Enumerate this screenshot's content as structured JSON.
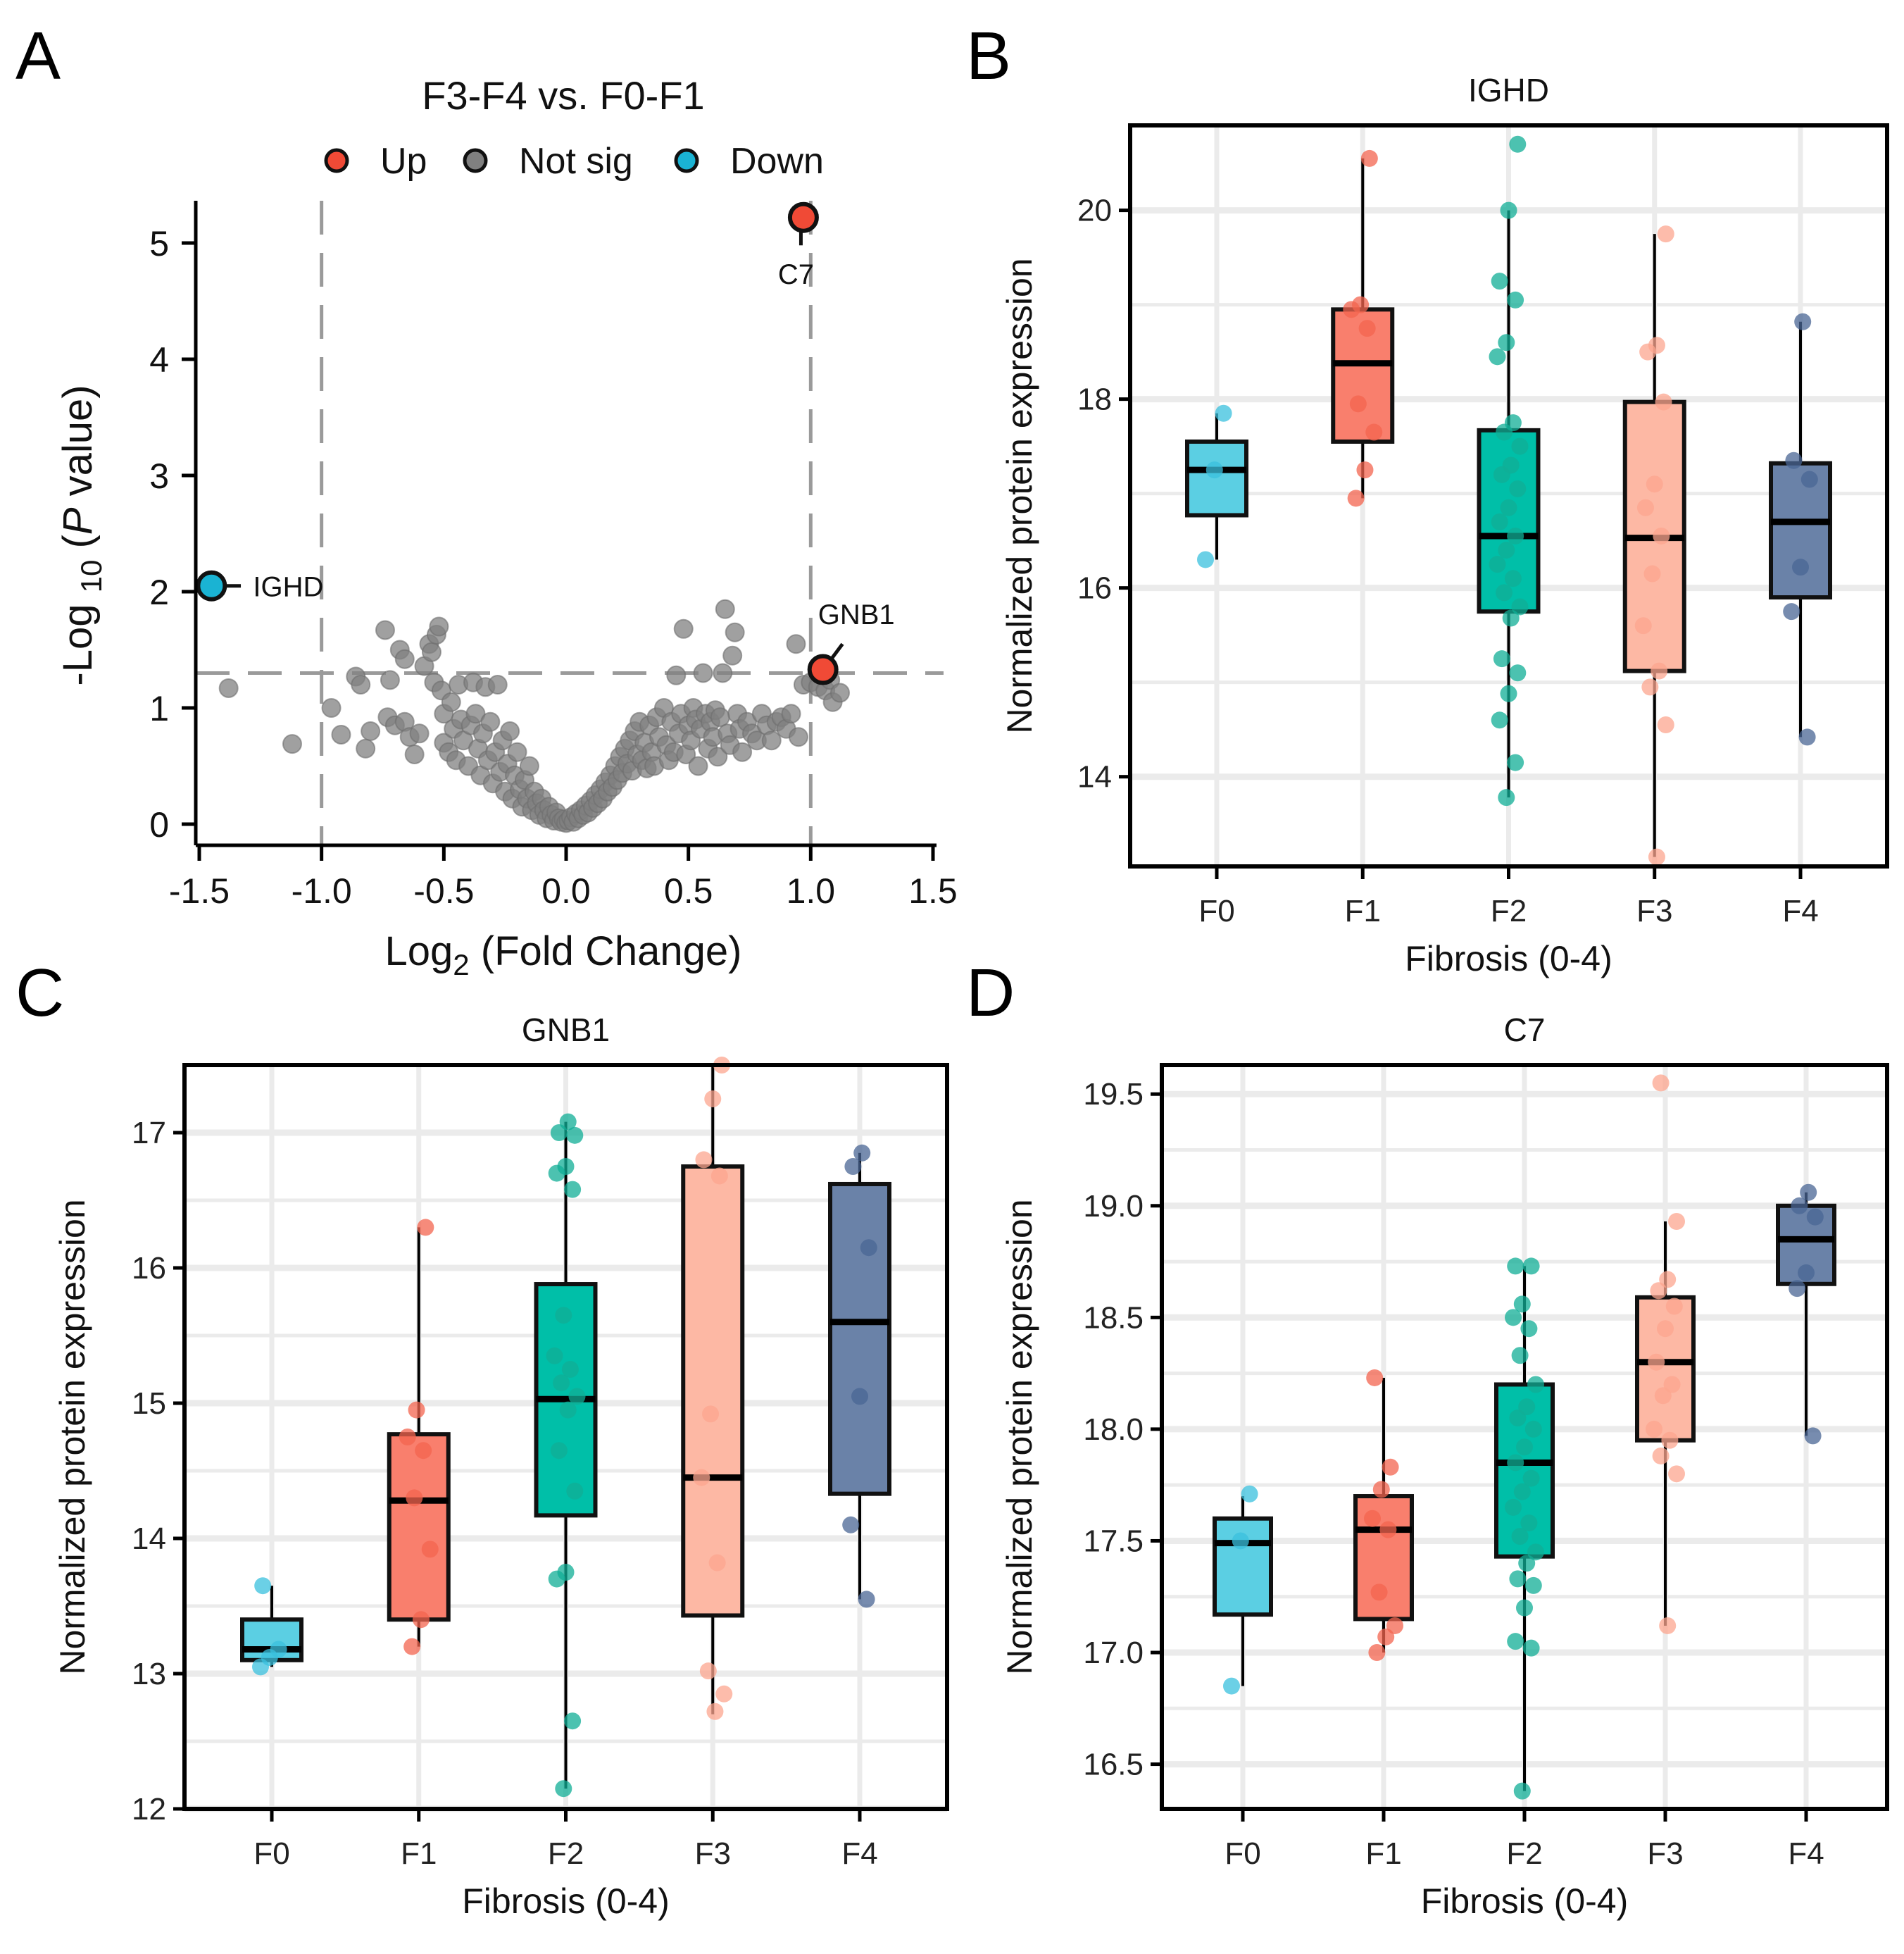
{
  "figure": {
    "panel_letters": [
      "A",
      "B",
      "C",
      "D"
    ]
  },
  "chart_data": [
    {
      "type": "scatter",
      "panel": "A",
      "title": "F3-F4 vs. F0-F1",
      "xlabel": "Log2 (Fold Change)",
      "xlabel_parts": {
        "base": "Log",
        "sub": "2",
        "rest": " (Fold Change)"
      },
      "ylabel": "-Log10 (P value)",
      "ylabel_parts": {
        "pre": "-Log ",
        "sub": "10",
        "mid": " (",
        "italic": "P",
        "post": " value)"
      },
      "xlim": [
        -1.5,
        1.5
      ],
      "ylim": [
        0,
        5.3
      ],
      "x_ticks": [
        -1.5,
        -1.0,
        -0.5,
        0.0,
        0.5,
        1.0,
        1.5
      ],
      "x_tick_labels": [
        "-1.5",
        "-1.0",
        "-0.5",
        "0.0",
        "0.5",
        "1.0",
        "1.5"
      ],
      "y_ticks": [
        0,
        1,
        2,
        3,
        4,
        5
      ],
      "y_tick_labels": [
        "0",
        "1",
        "2",
        "3",
        "4",
        "5"
      ],
      "thresholds": {
        "fc_lines": [
          -1.0,
          1.0
        ],
        "p_line": 1.3
      },
      "legend": {
        "position": "top",
        "entries": [
          {
            "label": "Up",
            "color": "#f04a36"
          },
          {
            "label": "Not sig",
            "color": "#808080"
          },
          {
            "label": "Down",
            "color": "#1ab3d3"
          }
        ]
      },
      "highlighted": [
        {
          "gene": "C7",
          "x": 0.97,
          "y": 5.22,
          "status": "Up",
          "color": "#f04a36"
        },
        {
          "gene": "GNB1",
          "x": 1.05,
          "y": 1.33,
          "status": "Up",
          "color": "#f04a36"
        },
        {
          "gene": "IGHD",
          "x": -1.45,
          "y": 2.05,
          "status": "Down",
          "color": "#1ab3d3"
        }
      ],
      "not_sig_color": "#808080",
      "not_sig_points": [
        [
          -1.38,
          1.17
        ],
        [
          -1.12,
          0.69
        ],
        [
          -0.96,
          1.0
        ],
        [
          -0.92,
          0.77
        ],
        [
          -0.86,
          1.27
        ],
        [
          -0.84,
          1.2
        ],
        [
          -0.8,
          0.8
        ],
        [
          -0.82,
          0.65
        ],
        [
          -0.74,
          1.67
        ],
        [
          -0.73,
          0.92
        ],
        [
          -0.72,
          1.24
        ],
        [
          -0.7,
          0.85
        ],
        [
          -0.68,
          1.5
        ],
        [
          -0.66,
          1.42
        ],
        [
          -0.66,
          0.88
        ],
        [
          -0.64,
          0.75
        ],
        [
          -0.62,
          0.6
        ],
        [
          -0.6,
          0.78
        ],
        [
          -0.58,
          1.36
        ],
        [
          -0.56,
          1.55
        ],
        [
          -0.55,
          1.48
        ],
        [
          -0.54,
          1.22
        ],
        [
          -0.53,
          1.63
        ],
        [
          -0.52,
          1.7
        ],
        [
          -0.51,
          1.15
        ],
        [
          -0.5,
          0.95
        ],
        [
          -0.5,
          0.7
        ],
        [
          -0.48,
          0.62
        ],
        [
          -0.47,
          1.05
        ],
        [
          -0.46,
          0.82
        ],
        [
          -0.45,
          0.55
        ],
        [
          -0.44,
          1.2
        ],
        [
          -0.43,
          0.9
        ],
        [
          -0.42,
          0.72
        ],
        [
          -0.4,
          0.5
        ],
        [
          -0.39,
          0.85
        ],
        [
          -0.38,
          1.22
        ],
        [
          -0.37,
          0.95
        ],
        [
          -0.36,
          0.65
        ],
        [
          -0.35,
          0.42
        ],
        [
          -0.34,
          0.78
        ],
        [
          -0.33,
          1.18
        ],
        [
          -0.32,
          0.55
        ],
        [
          -0.31,
          0.88
        ],
        [
          -0.3,
          0.35
        ],
        [
          -0.29,
          0.62
        ],
        [
          -0.28,
          1.2
        ],
        [
          -0.27,
          0.45
        ],
        [
          -0.26,
          0.72
        ],
        [
          -0.25,
          0.28
        ],
        [
          -0.24,
          0.52
        ],
        [
          -0.23,
          0.8
        ],
        [
          -0.22,
          0.22
        ],
        [
          -0.21,
          0.42
        ],
        [
          -0.2,
          0.62
        ],
        [
          -0.19,
          0.3
        ],
        [
          -0.18,
          0.15
        ],
        [
          -0.17,
          0.38
        ],
        [
          -0.16,
          0.22
        ],
        [
          -0.15,
          0.5
        ],
        [
          -0.14,
          0.12
        ],
        [
          -0.13,
          0.28
        ],
        [
          -0.12,
          0.18
        ],
        [
          -0.11,
          0.08
        ],
        [
          -0.1,
          0.22
        ],
        [
          -0.09,
          0.12
        ],
        [
          -0.08,
          0.05
        ],
        [
          -0.07,
          0.15
        ],
        [
          -0.06,
          0.08
        ],
        [
          -0.05,
          0.03
        ],
        [
          -0.04,
          0.1
        ],
        [
          -0.03,
          0.05
        ],
        [
          -0.02,
          0.02
        ],
        [
          -0.01,
          0.04
        ],
        [
          0.0,
          0.01
        ],
        [
          0.01,
          0.03
        ],
        [
          0.02,
          0.06
        ],
        [
          0.03,
          0.02
        ],
        [
          0.04,
          0.09
        ],
        [
          0.05,
          0.05
        ],
        [
          0.06,
          0.12
        ],
        [
          0.07,
          0.08
        ],
        [
          0.08,
          0.16
        ],
        [
          0.09,
          0.1
        ],
        [
          0.1,
          0.2
        ],
        [
          0.11,
          0.14
        ],
        [
          0.12,
          0.25
        ],
        [
          0.13,
          0.18
        ],
        [
          0.14,
          0.3
        ],
        [
          0.15,
          0.22
        ],
        [
          0.16,
          0.36
        ],
        [
          0.17,
          0.28
        ],
        [
          0.18,
          0.42
        ],
        [
          0.19,
          0.32
        ],
        [
          0.2,
          0.5
        ],
        [
          0.21,
          0.38
        ],
        [
          0.22,
          0.58
        ],
        [
          0.23,
          0.44
        ],
        [
          0.24,
          0.65
        ],
        [
          0.25,
          0.52
        ],
        [
          0.26,
          0.72
        ],
        [
          0.27,
          0.46
        ],
        [
          0.28,
          0.8
        ],
        [
          0.29,
          0.6
        ],
        [
          0.3,
          0.88
        ],
        [
          0.31,
          0.55
        ],
        [
          0.32,
          0.7
        ],
        [
          0.33,
          0.48
        ],
        [
          0.34,
          0.85
        ],
        [
          0.35,
          0.62
        ],
        [
          0.36,
          0.5
        ],
        [
          0.37,
          0.92
        ],
        [
          0.38,
          0.75
        ],
        [
          0.4,
          1.0
        ],
        [
          0.41,
          0.68
        ],
        [
          0.42,
          0.55
        ],
        [
          0.43,
          0.88
        ],
        [
          0.44,
          0.62
        ],
        [
          0.45,
          1.28
        ],
        [
          0.46,
          0.78
        ],
        [
          0.47,
          0.95
        ],
        [
          0.48,
          1.68
        ],
        [
          0.49,
          0.6
        ],
        [
          0.5,
          0.85
        ],
        [
          0.51,
          0.72
        ],
        [
          0.52,
          1.0
        ],
        [
          0.53,
          0.9
        ],
        [
          0.54,
          0.5
        ],
        [
          0.55,
          0.82
        ],
        [
          0.56,
          1.3
        ],
        [
          0.57,
          0.95
        ],
        [
          0.58,
          0.65
        ],
        [
          0.59,
          0.88
        ],
        [
          0.6,
          0.75
        ],
        [
          0.61,
          0.98
        ],
        [
          0.62,
          0.58
        ],
        [
          0.63,
          0.92
        ],
        [
          0.64,
          1.3
        ],
        [
          0.65,
          1.85
        ],
        [
          0.66,
          0.78
        ],
        [
          0.67,
          0.68
        ],
        [
          0.68,
          1.45
        ],
        [
          0.69,
          1.65
        ],
        [
          0.7,
          0.95
        ],
        [
          0.71,
          0.82
        ],
        [
          0.72,
          0.62
        ],
        [
          0.74,
          0.88
        ],
        [
          0.76,
          0.78
        ],
        [
          0.78,
          0.72
        ],
        [
          0.8,
          0.95
        ],
        [
          0.82,
          0.85
        ],
        [
          0.84,
          0.72
        ],
        [
          0.86,
          0.88
        ],
        [
          0.88,
          0.92
        ],
        [
          0.9,
          0.82
        ],
        [
          0.92,
          0.95
        ],
        [
          0.94,
          1.55
        ],
        [
          0.95,
          0.75
        ],
        [
          0.97,
          1.2
        ],
        [
          1.0,
          1.22
        ],
        [
          1.03,
          1.18
        ],
        [
          1.06,
          1.15
        ],
        [
          1.08,
          1.24
        ],
        [
          1.09,
          1.05
        ],
        [
          1.12,
          1.13
        ]
      ]
    },
    {
      "type": "box",
      "panel": "B",
      "title": "IGHD",
      "xlabel": "Fibrosis (0-4)",
      "ylabel": "Normalized protein expression",
      "ylim": [
        13.05,
        20.9
      ],
      "y_ticks": [
        14,
        16,
        18,
        20
      ],
      "y_tick_labels": [
        "14",
        "16",
        "18",
        "20"
      ],
      "grid": true,
      "categories": [
        "F0",
        "F1",
        "F2",
        "F3",
        "F4"
      ],
      "colors": [
        "#5bcfe3",
        "#f97f6d",
        "#00bfa8",
        "#fdb8a4",
        "#6a82a8"
      ],
      "point_colors": [
        "#39c0dd",
        "#f3644f",
        "#10ad96",
        "#fca58f",
        "#4a6594"
      ],
      "boxes": [
        {
          "q1": 16.77,
          "median": 17.25,
          "q3": 17.55,
          "whisker_low": 16.3,
          "whisker_high": 17.85
        },
        {
          "q1": 17.55,
          "median": 18.38,
          "q3": 18.95,
          "whisker_low": 16.95,
          "whisker_high": 20.55
        },
        {
          "q1": 15.75,
          "median": 16.55,
          "q3": 17.67,
          "whisker_low": 13.78,
          "whisker_high": 20.0
        },
        {
          "q1": 15.12,
          "median": 16.53,
          "q3": 17.97,
          "whisker_low": 13.15,
          "whisker_high": 19.75
        },
        {
          "q1": 15.9,
          "median": 16.7,
          "q3": 17.32,
          "whisker_low": 14.42,
          "whisker_high": 18.82
        }
      ],
      "points": [
        [
          16.3,
          17.25,
          17.85
        ],
        [
          16.95,
          17.25,
          17.65,
          17.95,
          18.75,
          18.95,
          19.0,
          20.55
        ],
        [
          13.78,
          14.15,
          14.6,
          14.88,
          15.1,
          15.25,
          15.68,
          15.8,
          15.95,
          16.1,
          16.25,
          16.4,
          16.55,
          16.7,
          16.85,
          17.05,
          17.2,
          17.3,
          17.5,
          17.65,
          17.75,
          18.45,
          18.6,
          19.05,
          19.25,
          20.0,
          20.7
        ],
        [
          13.15,
          14.55,
          14.95,
          15.12,
          15.6,
          16.15,
          16.55,
          16.85,
          17.1,
          17.97,
          18.5,
          18.57,
          19.75
        ],
        [
          14.42,
          15.75,
          16.22,
          17.15,
          17.35,
          18.82
        ]
      ]
    },
    {
      "type": "box",
      "panel": "C",
      "title": "GNB1",
      "xlabel": "Fibrosis (0-4)",
      "ylabel": "Normalized protein expression",
      "ylim": [
        12,
        17.5
      ],
      "y_ticks": [
        12,
        13,
        14,
        15,
        16,
        17
      ],
      "y_tick_labels": [
        "12",
        "13",
        "14",
        "15",
        "16",
        "17"
      ],
      "grid": true,
      "categories": [
        "F0",
        "F1",
        "F2",
        "F3",
        "F4"
      ],
      "colors": [
        "#5bcfe3",
        "#f97f6d",
        "#00bfa8",
        "#fdb8a4",
        "#6a82a8"
      ],
      "point_colors": [
        "#39c0dd",
        "#f3644f",
        "#10ad96",
        "#fca58f",
        "#4a6594"
      ],
      "boxes": [
        {
          "q1": 13.1,
          "median": 13.18,
          "q3": 13.4,
          "whisker_low": 13.05,
          "whisker_high": 13.65
        },
        {
          "q1": 13.4,
          "median": 14.28,
          "q3": 14.77,
          "whisker_low": 13.2,
          "whisker_high": 16.3
        },
        {
          "q1": 14.17,
          "median": 15.03,
          "q3": 15.88,
          "whisker_low": 12.15,
          "whisker_high": 17.08
        },
        {
          "q1": 13.43,
          "median": 14.45,
          "q3": 16.75,
          "whisker_low": 12.7,
          "whisker_high": 17.5
        },
        {
          "q1": 14.33,
          "median": 15.6,
          "q3": 16.62,
          "whisker_low": 13.55,
          "whisker_high": 16.85
        }
      ],
      "points": [
        [
          13.05,
          13.12,
          13.18,
          13.65
        ],
        [
          13.2,
          13.4,
          13.92,
          14.3,
          14.65,
          14.75,
          14.95,
          16.3
        ],
        [
          12.15,
          12.65,
          13.7,
          13.75,
          14.35,
          14.65,
          14.95,
          15.05,
          15.15,
          15.25,
          15.35,
          15.65,
          16.58,
          16.7,
          16.75,
          16.98,
          17.0,
          17.08
        ],
        [
          12.72,
          12.85,
          13.02,
          13.82,
          14.45,
          14.92,
          16.68,
          16.8,
          17.25,
          17.5
        ],
        [
          13.55,
          14.1,
          15.05,
          16.15,
          16.75,
          16.85
        ]
      ]
    },
    {
      "type": "box",
      "panel": "D",
      "title": "C7",
      "xlabel": "Fibrosis (0-4)",
      "ylabel": "Normalized protein expression",
      "ylim": [
        16.3,
        19.63
      ],
      "y_ticks": [
        16.5,
        17.0,
        17.5,
        18.0,
        18.5,
        19.0,
        19.5
      ],
      "y_tick_labels": [
        "16.5",
        "17.0",
        "17.5",
        "18.0",
        "18.5",
        "19.0",
        "19.5"
      ],
      "grid": true,
      "categories": [
        "F0",
        "F1",
        "F2",
        "F3",
        "F4"
      ],
      "colors": [
        "#5bcfe3",
        "#f97f6d",
        "#00bfa8",
        "#fdb8a4",
        "#6a82a8"
      ],
      "point_colors": [
        "#39c0dd",
        "#f3644f",
        "#10ad96",
        "#fca58f",
        "#4a6594"
      ],
      "boxes": [
        {
          "q1": 17.17,
          "median": 17.49,
          "q3": 17.6,
          "whisker_low": 16.85,
          "whisker_high": 17.7
        },
        {
          "q1": 17.15,
          "median": 17.55,
          "q3": 17.7,
          "whisker_low": 17.0,
          "whisker_high": 18.23
        },
        {
          "q1": 17.43,
          "median": 17.85,
          "q3": 18.2,
          "whisker_low": 16.38,
          "whisker_high": 18.73
        },
        {
          "q1": 17.95,
          "median": 18.3,
          "q3": 18.59,
          "whisker_low": 17.12,
          "whisker_high": 18.93
        },
        {
          "q1": 18.65,
          "median": 18.85,
          "q3": 19.0,
          "whisker_low": 17.97,
          "whisker_high": 19.06
        }
      ],
      "points": [
        [
          16.85,
          17.5,
          17.71
        ],
        [
          17.0,
          17.07,
          17.12,
          17.27,
          17.55,
          17.6,
          17.73,
          17.83,
          18.23
        ],
        [
          16.38,
          17.02,
          17.05,
          17.2,
          17.3,
          17.33,
          17.4,
          17.45,
          17.52,
          17.58,
          17.65,
          17.72,
          17.78,
          17.85,
          17.92,
          18.0,
          18.05,
          18.1,
          18.2,
          18.33,
          18.45,
          18.5,
          18.56,
          18.73,
          18.73
        ],
        [
          17.12,
          17.8,
          17.88,
          17.95,
          18.0,
          18.15,
          18.2,
          18.3,
          18.45,
          18.55,
          18.62,
          18.67,
          18.93,
          19.55
        ],
        [
          17.97,
          18.63,
          18.7,
          18.95,
          19.0,
          19.06
        ]
      ]
    }
  ]
}
